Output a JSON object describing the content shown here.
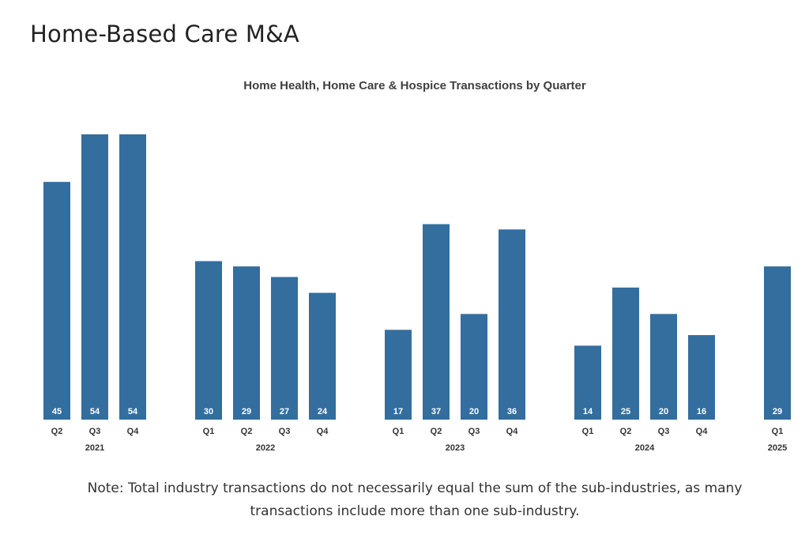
{
  "page": {
    "title": "Home-Based Care M&A",
    "note": "Note: Total industry transactions do not necessarily equal the sum of the sub-industries, as many transactions include more than one sub-industry."
  },
  "colors": {
    "bar": "#336e9f",
    "bar_label": "#ffffff",
    "text": "#333333"
  },
  "chart_data": {
    "type": "bar",
    "title": "Home Health, Home Care & Hospice Transactions by Quarter",
    "xlabel": "",
    "ylabel": "",
    "ylim": [
      0,
      54
    ],
    "grid": false,
    "groups": [
      {
        "year": "2021",
        "bars": [
          {
            "quarter": "Q2",
            "value": 45
          },
          {
            "quarter": "Q3",
            "value": 54
          },
          {
            "quarter": "Q4",
            "value": 54
          }
        ]
      },
      {
        "year": "2022",
        "bars": [
          {
            "quarter": "Q1",
            "value": 30
          },
          {
            "quarter": "Q2",
            "value": 29
          },
          {
            "quarter": "Q3",
            "value": 27
          },
          {
            "quarter": "Q4",
            "value": 24
          }
        ]
      },
      {
        "year": "2023",
        "bars": [
          {
            "quarter": "Q1",
            "value": 17
          },
          {
            "quarter": "Q2",
            "value": 37
          },
          {
            "quarter": "Q3",
            "value": 20
          },
          {
            "quarter": "Q4",
            "value": 36
          }
        ]
      },
      {
        "year": "2024",
        "bars": [
          {
            "quarter": "Q1",
            "value": 14
          },
          {
            "quarter": "Q2",
            "value": 25
          },
          {
            "quarter": "Q3",
            "value": 20
          },
          {
            "quarter": "Q4",
            "value": 16
          }
        ]
      },
      {
        "year": "2025",
        "bars": [
          {
            "quarter": "Q1",
            "value": 29
          }
        ]
      }
    ]
  }
}
